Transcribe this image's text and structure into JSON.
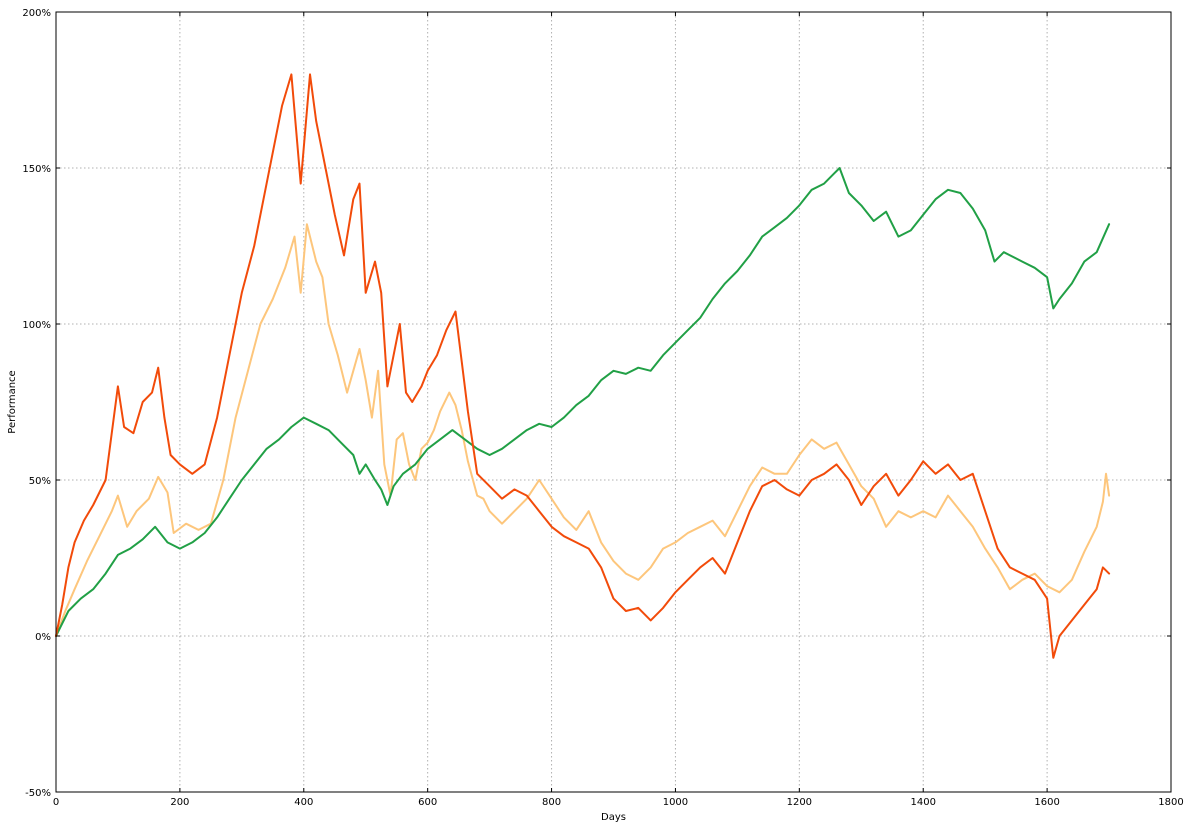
{
  "chart_data": {
    "type": "line",
    "title": "",
    "xlabel": "Days",
    "ylabel": "Performance",
    "xlim": [
      0,
      1800
    ],
    "ylim": [
      -50,
      200
    ],
    "x_ticks": [
      0,
      200,
      400,
      600,
      800,
      1000,
      1200,
      1400,
      1600,
      1800
    ],
    "x_tick_labels": [
      "0",
      "200",
      "400",
      "600",
      "800",
      "1000",
      "1200",
      "1400",
      "1600",
      "1800"
    ],
    "y_ticks": [
      -50,
      0,
      50,
      100,
      150,
      200
    ],
    "y_tick_labels": [
      "-50%",
      "0%",
      "50%",
      "100%",
      "150%",
      "200%"
    ],
    "grid": true,
    "legend": "none",
    "series": [
      {
        "color": "#fdc67c",
        "points": [
          [
            0,
            0
          ],
          [
            15,
            8
          ],
          [
            30,
            15
          ],
          [
            50,
            24
          ],
          [
            70,
            32
          ],
          [
            90,
            40
          ],
          [
            100,
            45
          ],
          [
            115,
            35
          ],
          [
            130,
            40
          ],
          [
            150,
            44
          ],
          [
            165,
            51
          ],
          [
            180,
            46
          ],
          [
            190,
            33
          ],
          [
            210,
            36
          ],
          [
            230,
            34
          ],
          [
            250,
            36
          ],
          [
            270,
            50
          ],
          [
            290,
            70
          ],
          [
            310,
            85
          ],
          [
            330,
            100
          ],
          [
            350,
            108
          ],
          [
            370,
            118
          ],
          [
            385,
            128
          ],
          [
            395,
            110
          ],
          [
            405,
            132
          ],
          [
            420,
            120
          ],
          [
            430,
            115
          ],
          [
            440,
            100
          ],
          [
            455,
            90
          ],
          [
            470,
            78
          ],
          [
            480,
            85
          ],
          [
            490,
            92
          ],
          [
            500,
            82
          ],
          [
            510,
            70
          ],
          [
            520,
            85
          ],
          [
            530,
            55
          ],
          [
            540,
            45
          ],
          [
            550,
            63
          ],
          [
            560,
            65
          ],
          [
            570,
            55
          ],
          [
            580,
            50
          ],
          [
            590,
            60
          ],
          [
            600,
            62
          ],
          [
            610,
            66
          ],
          [
            620,
            72
          ],
          [
            635,
            78
          ],
          [
            645,
            74
          ],
          [
            655,
            66
          ],
          [
            665,
            56
          ],
          [
            680,
            45
          ],
          [
            690,
            44
          ],
          [
            700,
            40
          ],
          [
            720,
            36
          ],
          [
            740,
            40
          ],
          [
            760,
            44
          ],
          [
            780,
            50
          ],
          [
            800,
            44
          ],
          [
            820,
            38
          ],
          [
            840,
            34
          ],
          [
            860,
            40
          ],
          [
            880,
            30
          ],
          [
            900,
            24
          ],
          [
            920,
            20
          ],
          [
            940,
            18
          ],
          [
            960,
            22
          ],
          [
            980,
            28
          ],
          [
            1000,
            30
          ],
          [
            1020,
            33
          ],
          [
            1040,
            35
          ],
          [
            1060,
            37
          ],
          [
            1080,
            32
          ],
          [
            1100,
            40
          ],
          [
            1120,
            48
          ],
          [
            1140,
            54
          ],
          [
            1160,
            52
          ],
          [
            1180,
            52
          ],
          [
            1200,
            58
          ],
          [
            1220,
            63
          ],
          [
            1240,
            60
          ],
          [
            1260,
            62
          ],
          [
            1280,
            55
          ],
          [
            1300,
            48
          ],
          [
            1320,
            44
          ],
          [
            1340,
            35
          ],
          [
            1360,
            40
          ],
          [
            1380,
            38
          ],
          [
            1400,
            40
          ],
          [
            1420,
            38
          ],
          [
            1440,
            45
          ],
          [
            1460,
            40
          ],
          [
            1480,
            35
          ],
          [
            1500,
            28
          ],
          [
            1520,
            22
          ],
          [
            1540,
            15
          ],
          [
            1560,
            18
          ],
          [
            1580,
            20
          ],
          [
            1600,
            16
          ],
          [
            1620,
            14
          ],
          [
            1640,
            18
          ],
          [
            1660,
            27
          ],
          [
            1680,
            35
          ],
          [
            1690,
            43
          ],
          [
            1695,
            52
          ],
          [
            1700,
            45
          ]
        ]
      },
      {
        "color": "#21a046",
        "points": [
          [
            0,
            0
          ],
          [
            20,
            8
          ],
          [
            40,
            12
          ],
          [
            60,
            15
          ],
          [
            80,
            20
          ],
          [
            100,
            26
          ],
          [
            120,
            28
          ],
          [
            140,
            31
          ],
          [
            160,
            35
          ],
          [
            180,
            30
          ],
          [
            200,
            28
          ],
          [
            220,
            30
          ],
          [
            240,
            33
          ],
          [
            260,
            38
          ],
          [
            280,
            44
          ],
          [
            300,
            50
          ],
          [
            320,
            55
          ],
          [
            340,
            60
          ],
          [
            360,
            63
          ],
          [
            380,
            67
          ],
          [
            400,
            70
          ],
          [
            420,
            68
          ],
          [
            440,
            66
          ],
          [
            460,
            62
          ],
          [
            480,
            58
          ],
          [
            490,
            52
          ],
          [
            500,
            55
          ],
          [
            515,
            50
          ],
          [
            525,
            47
          ],
          [
            535,
            42
          ],
          [
            545,
            48
          ],
          [
            560,
            52
          ],
          [
            580,
            55
          ],
          [
            600,
            60
          ],
          [
            620,
            63
          ],
          [
            640,
            66
          ],
          [
            660,
            63
          ],
          [
            680,
            60
          ],
          [
            700,
            58
          ],
          [
            720,
            60
          ],
          [
            740,
            63
          ],
          [
            760,
            66
          ],
          [
            780,
            68
          ],
          [
            800,
            67
          ],
          [
            820,
            70
          ],
          [
            840,
            74
          ],
          [
            860,
            77
          ],
          [
            880,
            82
          ],
          [
            900,
            85
          ],
          [
            920,
            84
          ],
          [
            940,
            86
          ],
          [
            960,
            85
          ],
          [
            980,
            90
          ],
          [
            1000,
            94
          ],
          [
            1020,
            98
          ],
          [
            1040,
            102
          ],
          [
            1060,
            108
          ],
          [
            1080,
            113
          ],
          [
            1100,
            117
          ],
          [
            1120,
            122
          ],
          [
            1140,
            128
          ],
          [
            1160,
            131
          ],
          [
            1180,
            134
          ],
          [
            1200,
            138
          ],
          [
            1220,
            143
          ],
          [
            1240,
            145
          ],
          [
            1255,
            148
          ],
          [
            1265,
            150
          ],
          [
            1280,
            142
          ],
          [
            1300,
            138
          ],
          [
            1320,
            133
          ],
          [
            1340,
            136
          ],
          [
            1360,
            128
          ],
          [
            1380,
            130
          ],
          [
            1400,
            135
          ],
          [
            1420,
            140
          ],
          [
            1440,
            143
          ],
          [
            1460,
            142
          ],
          [
            1480,
            137
          ],
          [
            1500,
            130
          ],
          [
            1515,
            120
          ],
          [
            1530,
            123
          ],
          [
            1560,
            120
          ],
          [
            1580,
            118
          ],
          [
            1600,
            115
          ],
          [
            1610,
            105
          ],
          [
            1620,
            108
          ],
          [
            1640,
            113
          ],
          [
            1660,
            120
          ],
          [
            1680,
            123
          ],
          [
            1700,
            132
          ]
        ]
      },
      {
        "color": "#f24b0a",
        "points": [
          [
            0,
            0
          ],
          [
            10,
            10
          ],
          [
            20,
            22
          ],
          [
            30,
            30
          ],
          [
            45,
            37
          ],
          [
            60,
            42
          ],
          [
            80,
            50
          ],
          [
            100,
            80
          ],
          [
            110,
            67
          ],
          [
            125,
            65
          ],
          [
            140,
            75
          ],
          [
            155,
            78
          ],
          [
            165,
            86
          ],
          [
            175,
            70
          ],
          [
            185,
            58
          ],
          [
            200,
            55
          ],
          [
            220,
            52
          ],
          [
            240,
            55
          ],
          [
            260,
            70
          ],
          [
            280,
            90
          ],
          [
            300,
            110
          ],
          [
            320,
            125
          ],
          [
            340,
            145
          ],
          [
            355,
            160
          ],
          [
            365,
            170
          ],
          [
            380,
            180
          ],
          [
            395,
            145
          ],
          [
            410,
            180
          ],
          [
            420,
            165
          ],
          [
            435,
            150
          ],
          [
            450,
            135
          ],
          [
            465,
            122
          ],
          [
            480,
            140
          ],
          [
            490,
            145
          ],
          [
            500,
            110
          ],
          [
            515,
            120
          ],
          [
            525,
            110
          ],
          [
            535,
            80
          ],
          [
            545,
            90
          ],
          [
            555,
            100
          ],
          [
            565,
            78
          ],
          [
            575,
            75
          ],
          [
            590,
            80
          ],
          [
            600,
            85
          ],
          [
            615,
            90
          ],
          [
            630,
            98
          ],
          [
            645,
            104
          ],
          [
            655,
            88
          ],
          [
            665,
            72
          ],
          [
            680,
            52
          ],
          [
            700,
            48
          ],
          [
            720,
            44
          ],
          [
            740,
            47
          ],
          [
            760,
            45
          ],
          [
            780,
            40
          ],
          [
            800,
            35
          ],
          [
            820,
            32
          ],
          [
            840,
            30
          ],
          [
            860,
            28
          ],
          [
            880,
            22
          ],
          [
            900,
            12
          ],
          [
            920,
            8
          ],
          [
            940,
            9
          ],
          [
            960,
            5
          ],
          [
            980,
            9
          ],
          [
            1000,
            14
          ],
          [
            1020,
            18
          ],
          [
            1040,
            22
          ],
          [
            1060,
            25
          ],
          [
            1080,
            20
          ],
          [
            1100,
            30
          ],
          [
            1120,
            40
          ],
          [
            1140,
            48
          ],
          [
            1160,
            50
          ],
          [
            1180,
            47
          ],
          [
            1200,
            45
          ],
          [
            1220,
            50
          ],
          [
            1240,
            52
          ],
          [
            1260,
            55
          ],
          [
            1280,
            50
          ],
          [
            1300,
            42
          ],
          [
            1320,
            48
          ],
          [
            1340,
            52
          ],
          [
            1360,
            45
          ],
          [
            1380,
            50
          ],
          [
            1400,
            56
          ],
          [
            1420,
            52
          ],
          [
            1440,
            55
          ],
          [
            1460,
            50
          ],
          [
            1480,
            52
          ],
          [
            1500,
            40
          ],
          [
            1520,
            28
          ],
          [
            1540,
            22
          ],
          [
            1560,
            20
          ],
          [
            1580,
            18
          ],
          [
            1600,
            12
          ],
          [
            1610,
            -7
          ],
          [
            1620,
            0
          ],
          [
            1640,
            5
          ],
          [
            1660,
            10
          ],
          [
            1680,
            15
          ],
          [
            1690,
            22
          ],
          [
            1700,
            20
          ]
        ]
      }
    ]
  }
}
